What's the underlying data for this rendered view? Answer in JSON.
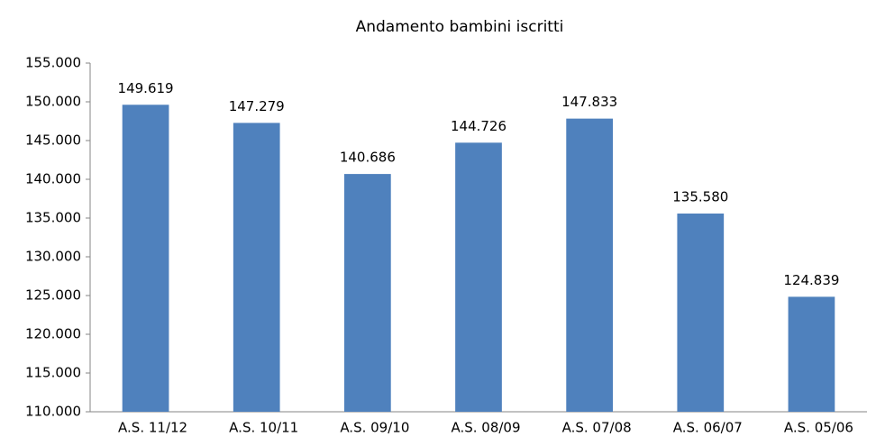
{
  "chart_data": {
    "type": "bar",
    "title": "Andamento bambini iscritti",
    "categories": [
      "A.S. 11/12",
      "A.S. 10/11",
      "A.S. 09/10",
      "A.S. 08/09",
      "A.S. 07/08",
      "A.S. 06/07",
      "A.S. 05/06"
    ],
    "values": [
      149619,
      147279,
      140686,
      144726,
      147833,
      135580,
      124839
    ],
    "value_labels": [
      "149.619",
      "147.279",
      "140.686",
      "144.726",
      "147.833",
      "135.580",
      "124.839"
    ],
    "color": "#4f81bd",
    "ylim": [
      110000,
      155000
    ],
    "yticks": [
      {
        "value": 110000,
        "label": "110.000"
      },
      {
        "value": 115000,
        "label": "115.000"
      },
      {
        "value": 120000,
        "label": "120.000"
      },
      {
        "value": 125000,
        "label": "125.000"
      },
      {
        "value": 130000,
        "label": "130.000"
      },
      {
        "value": 135000,
        "label": "135.000"
      },
      {
        "value": 140000,
        "label": "140.000"
      },
      {
        "value": 145000,
        "label": "145.000"
      },
      {
        "value": 150000,
        "label": "150.000"
      },
      {
        "value": 155000,
        "label": "155.000"
      }
    ],
    "grid": false
  }
}
